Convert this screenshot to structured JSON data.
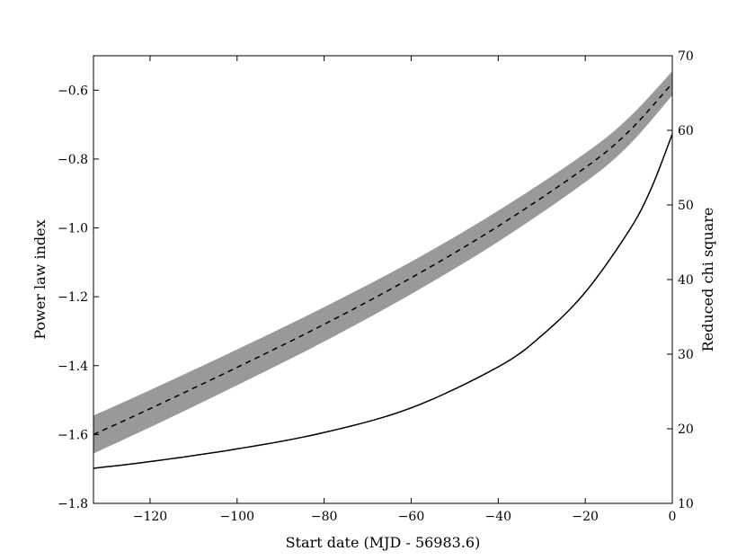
{
  "chart_data": {
    "type": "line",
    "title": "",
    "xlabel": "Start date (MJD - 56983.6)",
    "ylabel_left": "Power law index",
    "ylabel_right": "Reduced chi square",
    "xlim": [
      -133,
      0
    ],
    "ylim_left": [
      -1.8,
      -0.5
    ],
    "ylim_right": [
      10,
      70
    ],
    "x_ticks": [
      -120,
      -100,
      -80,
      -60,
      -40,
      -20,
      0
    ],
    "x_tick_labels": [
      "−120",
      "−100",
      "−80",
      "−60",
      "−40",
      "−20",
      "0"
    ],
    "y_left_ticks": [
      -1.8,
      -1.6,
      -1.4,
      -1.2,
      -1.0,
      -0.8,
      -0.6
    ],
    "y_left_tick_labels": [
      "−1.8",
      "−1.6",
      "−1.4",
      "−1.2",
      "−1.0",
      "−0.8",
      "−0.6"
    ],
    "y_right_ticks": [
      10,
      20,
      30,
      40,
      50,
      60,
      70
    ],
    "y_right_tick_labels": [
      "10",
      "20",
      "30",
      "40",
      "50",
      "60",
      "70"
    ],
    "grid": false,
    "series": [
      {
        "axis": "left",
        "style": "dashed",
        "color": "#000000",
        "band_color": "#999999",
        "x": [
          -133,
          -120,
          -100,
          -80,
          -60,
          -40,
          -20,
          -10,
          0
        ],
        "y": [
          -1.6,
          -1.525,
          -1.405,
          -1.28,
          -1.145,
          -0.995,
          -0.825,
          -0.72,
          -0.58
        ],
        "band_halfwidth": [
          0.055,
          0.054,
          0.052,
          0.05,
          0.047,
          0.045,
          0.042,
          0.04,
          0.035
        ]
      },
      {
        "axis": "right",
        "style": "solid",
        "color": "#000000",
        "x": [
          -133,
          -120,
          -100,
          -80,
          -60,
          -40,
          -30,
          -20,
          -10,
          -5,
          0
        ],
        "y": [
          14.7,
          15.6,
          17.3,
          19.5,
          22.8,
          28.3,
          32.5,
          38.3,
          46.5,
          52,
          59.5
        ]
      }
    ]
  }
}
